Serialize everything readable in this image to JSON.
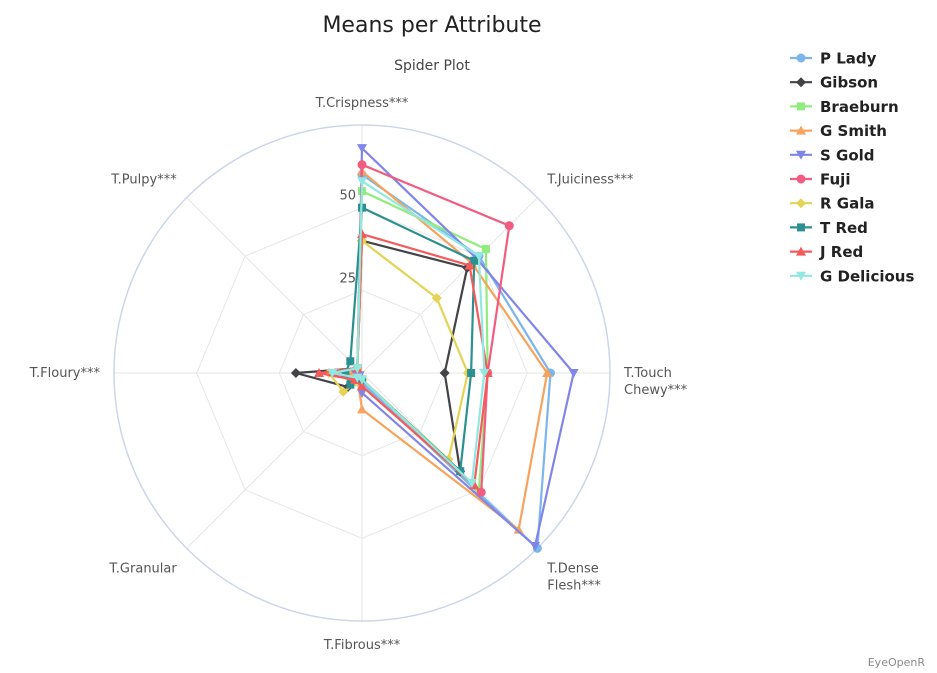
{
  "chart_data": {
    "type": "radar",
    "title": "Means per Attribute",
    "subtitle": "Spider Plot",
    "credit": "EyeOpenR",
    "axes": [
      "T.Crispness***",
      "T.Juiciness***",
      "T.Touch Chewy***",
      "T.Dense Flesh***",
      "T.Fibrous***",
      "T.Granular",
      "T.Floury***",
      "T.Pulpy***"
    ],
    "radial_range": [
      0,
      75
    ],
    "radial_ticks": [
      25,
      50
    ],
    "grid": true,
    "legend_position": "top-right",
    "series": [
      {
        "name": "P Lady",
        "color": "#7cb5ec",
        "marker": "circle",
        "values": [
          60,
          50,
          57,
          75,
          3,
          2,
          2,
          2
        ]
      },
      {
        "name": "Gibson",
        "color": "#434348",
        "marker": "diamond",
        "values": [
          40,
          45,
          25,
          42,
          2,
          6,
          20,
          2
        ]
      },
      {
        "name": "Braeburn",
        "color": "#90ed7d",
        "marker": "square",
        "values": [
          55,
          53,
          38,
          50,
          2,
          4,
          8,
          2
        ]
      },
      {
        "name": "G Smith",
        "color": "#f7a35c",
        "marker": "triangle",
        "values": [
          61,
          47,
          56,
          67,
          11,
          2,
          3,
          2
        ]
      },
      {
        "name": "S Gold",
        "color": "#8085e9",
        "marker": "triangle-down",
        "values": [
          68,
          49,
          64,
          74,
          6,
          1,
          2,
          2
        ]
      },
      {
        "name": "Fuji",
        "color": "#f15c80",
        "marker": "circle",
        "values": [
          63,
          63,
          38,
          51,
          2,
          3,
          8,
          2
        ]
      },
      {
        "name": "R Gala",
        "color": "#e4d354",
        "marker": "diamond",
        "values": [
          40,
          32,
          32,
          37,
          2,
          8,
          10,
          2
        ]
      },
      {
        "name": "T Red",
        "color": "#2b908f",
        "marker": "square",
        "values": [
          50,
          48,
          33,
          42,
          2,
          5,
          5,
          5
        ]
      },
      {
        "name": "J Red",
        "color": "#f45b5b",
        "marker": "triangle",
        "values": [
          42,
          46,
          38,
          48,
          4,
          3,
          13,
          2
        ]
      },
      {
        "name": "G Delicious",
        "color": "#91e8e1",
        "marker": "triangle-down",
        "values": [
          58,
          50,
          37,
          47,
          2,
          2,
          9,
          2
        ]
      }
    ]
  }
}
